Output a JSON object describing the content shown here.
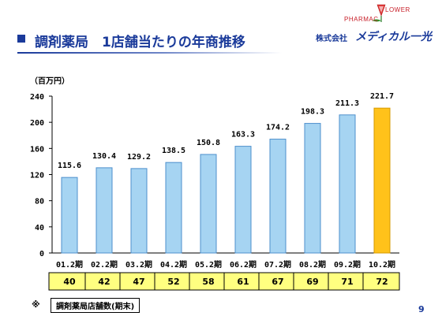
{
  "header": {
    "title": "調剤薬局　1店舗当たりの年商推移"
  },
  "logo": {
    "pharmac": "PHARMAC",
    "flower": "LOWER",
    "company_type": "株式会社",
    "brand": "メディカル一光"
  },
  "chart_data": {
    "type": "bar",
    "unit_label": "（百万円）",
    "categories": [
      "01.2期",
      "02.2期",
      "03.2期",
      "04.2期",
      "05.2期",
      "06.2期",
      "07.2期",
      "08.2期",
      "09.2期",
      "10.2期"
    ],
    "values": [
      115.6,
      130.4,
      129.2,
      138.5,
      150.8,
      163.3,
      174.2,
      198.3,
      211.3,
      221.7
    ],
    "value_labels": [
      "115.6",
      "130.4",
      "129.2",
      "138.5",
      "150.8",
      "163.3",
      "174.2",
      "198.3",
      "211.3",
      "221.7"
    ],
    "ylim": [
      0,
      240
    ],
    "yticks": [
      "0",
      "40",
      "80",
      "120",
      "160",
      "200",
      "240"
    ],
    "grid": false,
    "colors": {
      "bar": "#a6d4f2",
      "bar_border": "#4d8fcc",
      "highlight": "#ffc21a",
      "highlight_border": "#d69a00",
      "table_fill": "#ffff80"
    },
    "store_counts": [
      "40",
      "42",
      "47",
      "52",
      "58",
      "61",
      "67",
      "69",
      "71",
      "72"
    ]
  },
  "footer": {
    "note_mark": "※",
    "note_text": "調剤薬局店舗数(期末)",
    "page_number": "9"
  }
}
